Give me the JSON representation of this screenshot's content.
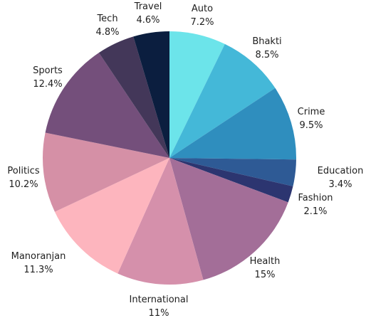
{
  "chart_data": {
    "type": "pie",
    "title": "",
    "slices": [
      {
        "label": "Auto",
        "value": 7.2,
        "value_label": "7.2%",
        "color": "#6ce4ea"
      },
      {
        "label": "Bhakti",
        "value": 8.5,
        "value_label": "8.5%",
        "color": "#44b8d8"
      },
      {
        "label": "Crime",
        "value": 9.5,
        "value_label": "9.5%",
        "color": "#2f8ebe"
      },
      {
        "label": "Education",
        "value": 3.4,
        "value_label": "3.4%",
        "color": "#2e5a95"
      },
      {
        "label": "Fashion",
        "value": 2.1,
        "value_label": "2.1%",
        "color": "#2c3570"
      },
      {
        "label": "Health",
        "value": 15,
        "value_label": "15%",
        "color": "#a36e98"
      },
      {
        "label": "International",
        "value": 11,
        "value_label": "11%",
        "color": "#d590ab"
      },
      {
        "label": "Manoranjan",
        "value": 11.3,
        "value_label": "11.3%",
        "color": "#fdb5be"
      },
      {
        "label": "Politics",
        "value": 10.2,
        "value_label": "10.2%",
        "color": "#d590a6"
      },
      {
        "label": "Sports",
        "value": 12.4,
        "value_label": "12.4%",
        "color": "#744f7b"
      },
      {
        "label": "Tech",
        "value": 4.8,
        "value_label": "4.8%",
        "color": "#433759"
      },
      {
        "label": "Travel",
        "value": 4.6,
        "value_label": "4.6%",
        "color": "#0b1e3f"
      }
    ]
  }
}
